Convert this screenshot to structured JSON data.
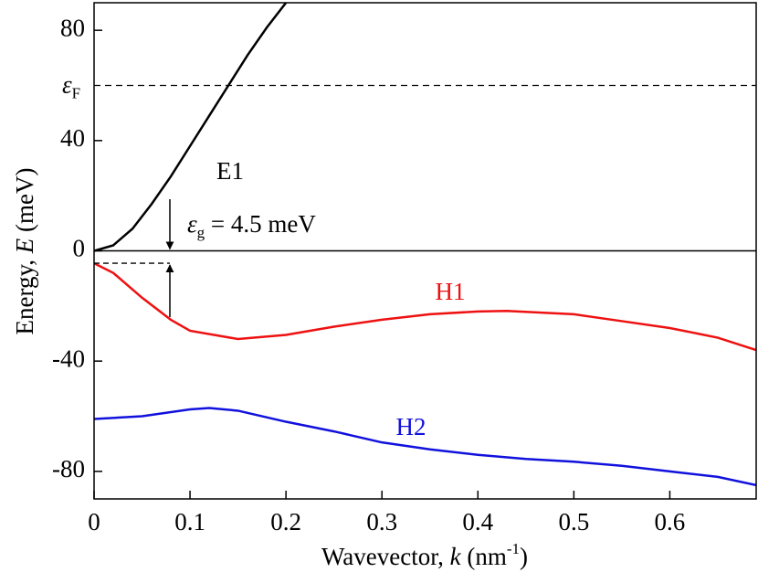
{
  "chart_data": {
    "type": "line",
    "x_label": {
      "pre": "Wavevector, ",
      "var": "k",
      "post": " (nm",
      "sup": "-1",
      "end": ")"
    },
    "y_label": {
      "pre": "Energy, ",
      "var": "E",
      "post": " (meV)"
    },
    "xlim": [
      0,
      0.69
    ],
    "ylim": [
      -90,
      90
    ],
    "xticks": [
      0,
      0.1,
      0.2,
      0.3,
      0.4,
      0.5,
      0.6
    ],
    "yticks": [
      -80,
      -40,
      0,
      40,
      80
    ],
    "fermi": {
      "symbol": "ε",
      "sub": "F",
      "value": 60
    },
    "gap": {
      "symbol": "ε",
      "sub": "g",
      "text": " = 4.5 meV"
    },
    "series": [
      {
        "name": "E1",
        "color": "#000000",
        "x": [
          0,
          0.02,
          0.04,
          0.06,
          0.08,
          0.1,
          0.12,
          0.14,
          0.16,
          0.18,
          0.2
        ],
        "values": [
          0,
          2,
          8,
          17,
          27,
          38,
          49,
          60,
          71,
          81,
          90
        ]
      },
      {
        "name": "H1",
        "color": "#ee1111",
        "x": [
          0,
          0.02,
          0.05,
          0.08,
          0.1,
          0.15,
          0.2,
          0.25,
          0.3,
          0.35,
          0.4,
          0.43,
          0.5,
          0.55,
          0.6,
          0.65,
          0.69
        ],
        "values": [
          -4.5,
          -8,
          -17,
          -25,
          -29,
          -32,
          -30.5,
          -27.5,
          -25,
          -23,
          -22,
          -21.8,
          -23,
          -25.5,
          -28,
          -31.5,
          -36
        ]
      },
      {
        "name": "H2",
        "color": "#1111dd",
        "x": [
          0,
          0.05,
          0.1,
          0.12,
          0.15,
          0.2,
          0.25,
          0.3,
          0.35,
          0.4,
          0.45,
          0.5,
          0.55,
          0.6,
          0.65,
          0.69
        ],
        "values": [
          -61,
          -60,
          -57.5,
          -57,
          -58,
          -62,
          -65.5,
          -69.5,
          -72,
          -74,
          -75.5,
          -76.5,
          -78,
          -80,
          -82,
          -85
        ]
      }
    ]
  }
}
